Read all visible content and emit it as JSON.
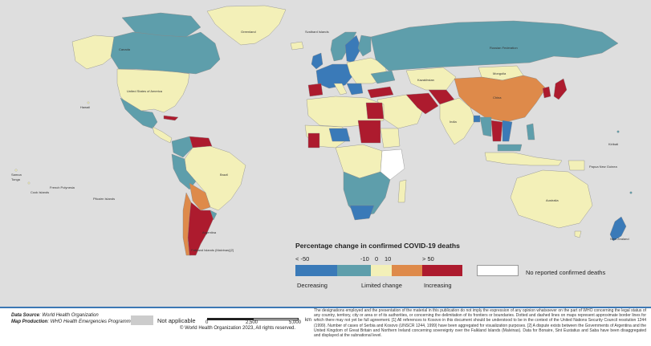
{
  "map": {
    "colors": {
      "ocean": "#ffffff",
      "background": "#e3e3e3",
      "decreasing_strong": "#3a7ab8",
      "decreasing": "#5e9eab",
      "limited": "#f3f0b8",
      "increasing_moderate": "#de8a4a",
      "increasing_strong": "#ad1b2e",
      "no_data": "#ffffff",
      "not_applicable": "#cccccc"
    },
    "labels": {
      "greenland": "Greenland",
      "canada": "Canada",
      "usa": "United States of America",
      "svalbard": "Svalbard Islands",
      "russia": "Russian Federation",
      "china": "China",
      "brazil": "Brazil",
      "argentina": "Argentina",
      "australia": "Australia",
      "mongolia": "Mongolia",
      "kazakhstan": "Kazakhstan",
      "india": "India",
      "nz": "New Zealand",
      "png": "Papua New Guinea",
      "kiribati": "Kiribati",
      "falklands": "Falkland Islands (Malvinas)[2]",
      "hawaii": "Hawaii",
      "cook": "Cook Islands",
      "tonga": "Tonga",
      "samoa": "Samoa",
      "french_polynesia": "French Polynesia",
      "pitcairn": "Pitcairn Islands"
    },
    "legend": {
      "title": "Percentage change in confirmed COVID-19 deaths",
      "ticks": [
        "< -50",
        "-10",
        "0",
        "10",
        "> 50"
      ],
      "categories": [
        "Decreasing",
        "Limited change",
        "Increasing"
      ],
      "no_data_label": "No reported confirmed deaths"
    }
  },
  "footer": {
    "source_label": "Data Source",
    "source_value": "World Health Organization",
    "production_label": "Map Production",
    "production_value": "WHO Health Emergencies Programme",
    "not_applicable": "Not applicable",
    "scale": [
      "0",
      "2,500",
      "5,000"
    ],
    "scale_unit": "km",
    "copyright": "© World Health Organization  2023,  All rights reserved.",
    "disclaimer": "The designations employed and the presentation of the material in this publication do not imply the expression of any opinion whatsoever on the part of WHO concerning the legal status of any country, territory, city or area or of its authorities, or concerning the delimitation of its frontiers or boundaries. Dotted and dashed lines on maps represent approximate border lines for which there may not yet be full agreement. [1] All references to Kosovo in this document should be understood to be in the context of the United Nations Security Council resolution 1244 (1999). Number of cases of Serbia and Kosovo (UNSCR 1244, 1999) have been aggregated for visualization purposes. [2] A dispute exists between the Governments of Argentina and the United Kingdom of Great Britain and Northern Ireland concerning sovereignty over the Falkland Islands (Malvinas). Data for Bonaire, Sint Eustatius and Saba have been disaggregated and displayed at the subnational level."
  }
}
